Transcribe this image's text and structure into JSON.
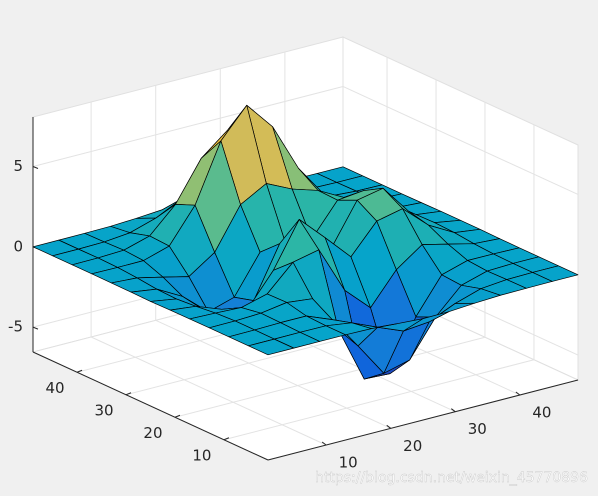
{
  "chart_data": {
    "type": "surface",
    "colormap": "parula",
    "edge_color": "#000000",
    "grid": true,
    "x": [
      1,
      5,
      9,
      13,
      17,
      21,
      25,
      29,
      33,
      37,
      41,
      45,
      49
    ],
    "y": [
      1,
      5,
      9,
      13,
      17,
      21,
      25,
      29,
      33,
      37,
      41,
      45,
      49
    ],
    "z": [
      [
        0,
        0,
        0,
        0,
        -0.03,
        -0.14,
        -0.24,
        -0.22,
        -0.11,
        -0.03,
        -0.01,
        0,
        0
      ],
      [
        0,
        0,
        0.01,
        0,
        -0.23,
        -0.92,
        -1.57,
        -1.41,
        -0.69,
        -0.18,
        -0.03,
        0,
        0
      ],
      [
        0,
        0.01,
        0.05,
        0.05,
        -0.59,
        -2.64,
        -4.76,
        -4.35,
        -2.1,
        -0.53,
        -0.06,
        0,
        0
      ],
      [
        0,
        0.01,
        0.08,
        0.33,
        0.15,
        -2.19,
        -5.68,
        -5.76,
        -2.64,
        -0.44,
        0.04,
        0.03,
        0
      ],
      [
        -0.01,
        -0.06,
        -0.13,
        0.3,
        1.86,
        2.22,
        -0.72,
        -2.22,
        -0.27,
        0.88,
        0.5,
        0.11,
        0.01
      ],
      [
        -0.02,
        -0.2,
        -0.8,
        -1.21,
        0.8,
        3.55,
        2,
        0.39,
        2.2,
        2.56,
        1.12,
        0.24,
        0.03
      ],
      [
        -0.04,
        -0.3,
        -1.33,
        -2.77,
        -1.65,
        1.48,
        0.98,
        0.37,
        2.94,
        3.27,
        1.41,
        0.3,
        0.03
      ],
      [
        -0.02,
        -0.25,
        -1.12,
        -2.49,
        -2,
        0.39,
        0.46,
        0.38,
        2.38,
        2.56,
        1.09,
        0.23,
        0.03
      ],
      [
        -0.01,
        -0.11,
        -0.48,
        -0.86,
        0.23,
        2.79,
        3.69,
        2.93,
        2.43,
        1.58,
        0.58,
        0.11,
        0.01
      ],
      [
        0,
        -0.02,
        -0.01,
        0.48,
        2.61,
        6.2,
        8,
        6.25,
        3.25,
        1.19,
        0.29,
        0.05,
        0
      ],
      [
        0,
        0.01,
        0.08,
        0.55,
        2.1,
        4.56,
        5.86,
        4.57,
        2.21,
        0.68,
        0.13,
        0.02,
        0
      ],
      [
        0,
        0,
        0.03,
        0.19,
        0.69,
        1.47,
        1.88,
        1.47,
        0.7,
        0.2,
        0.04,
        0,
        0
      ],
      [
        0,
        0,
        0.01,
        0.03,
        0.11,
        0.23,
        0.3,
        0.23,
        0.11,
        0.03,
        0.01,
        0,
        0
      ]
    ],
    "xlim": [
      1,
      49
    ],
    "ylim": [
      1,
      49
    ],
    "zlim": [
      -6.55,
      8.08
    ],
    "xticks": [
      10,
      20,
      30,
      40
    ],
    "yticks": [
      10,
      20,
      30,
      40
    ],
    "zticks": [
      -5,
      0,
      5
    ],
    "watermark": "https://blog.csdn.net/weixin_45770896"
  }
}
